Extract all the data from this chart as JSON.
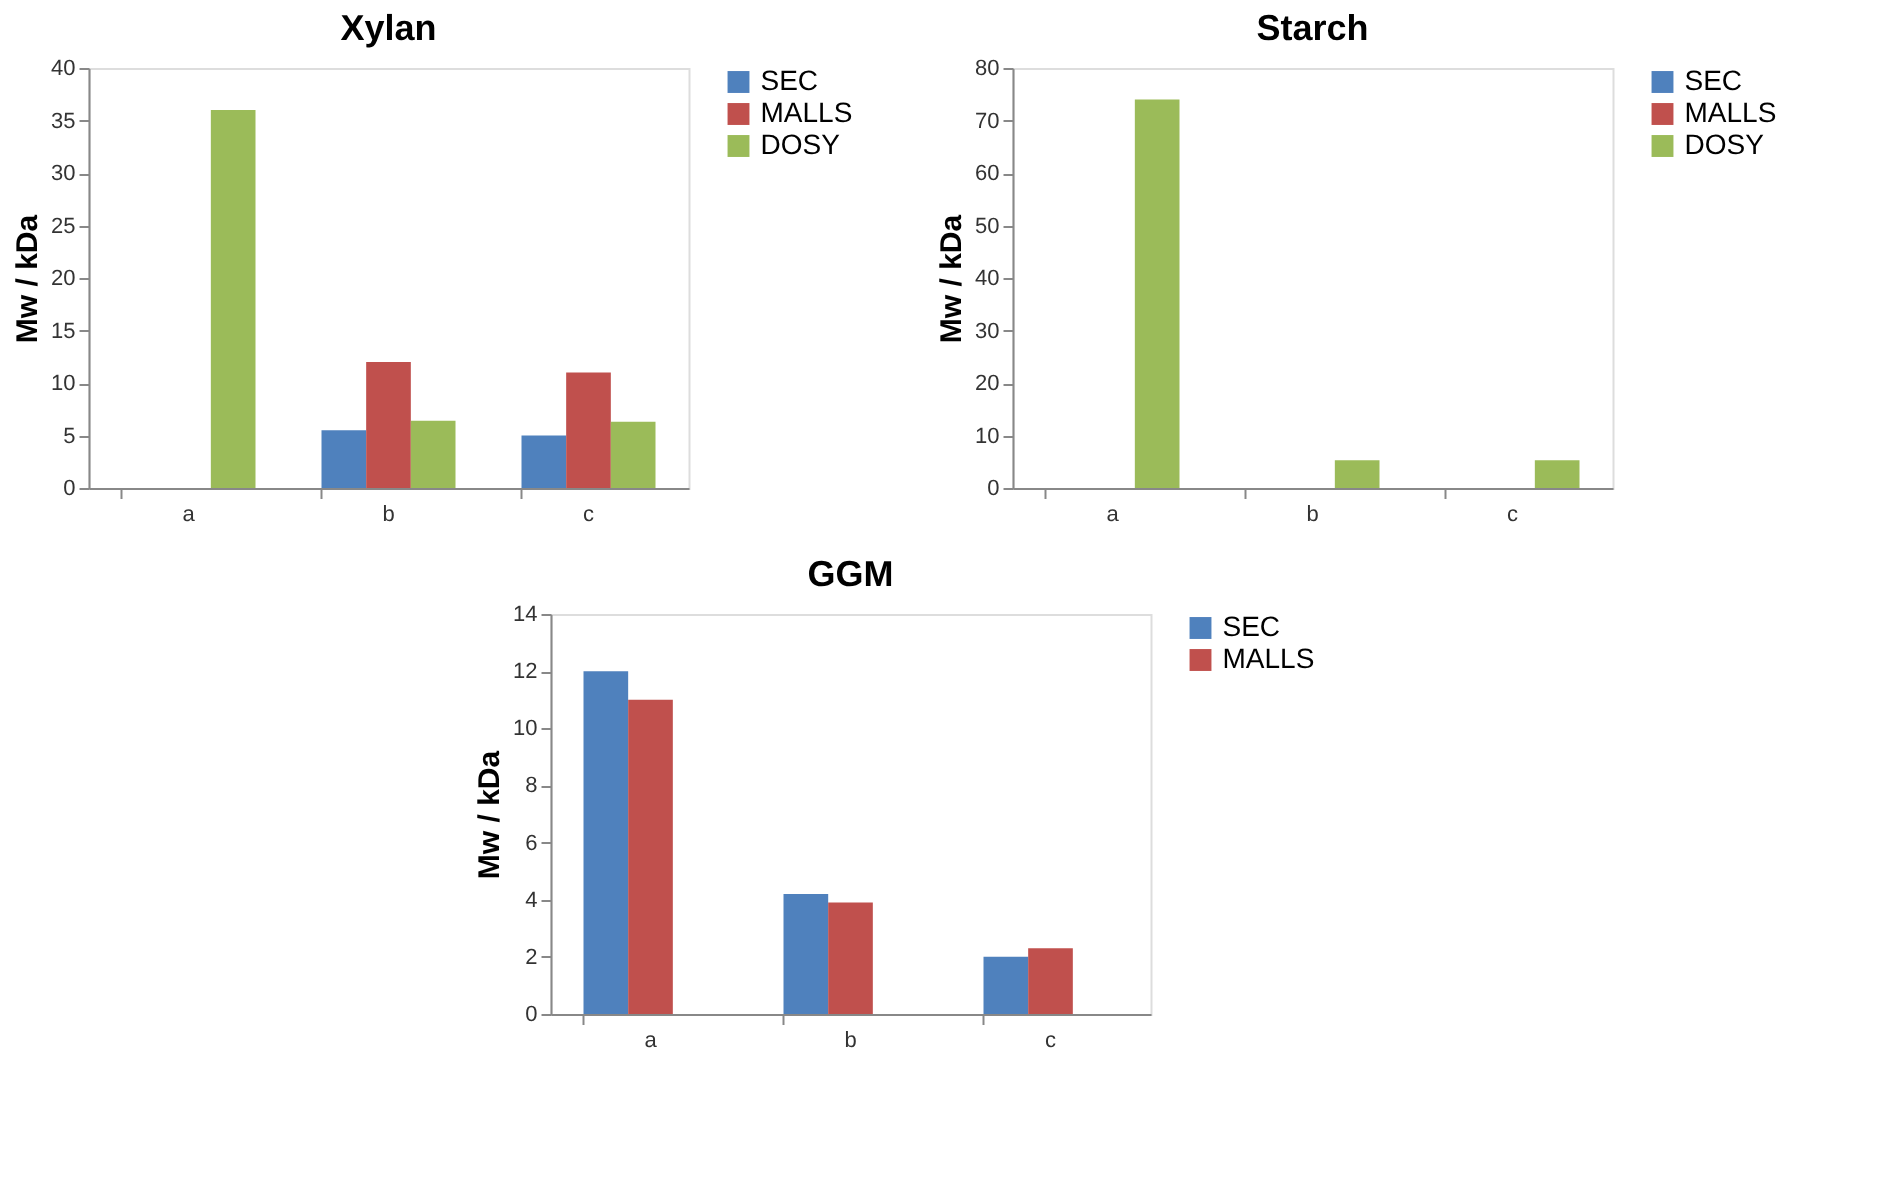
{
  "chart_data": [
    {
      "type": "bar",
      "title": "Xylan",
      "ylabel": "Mw / kDa",
      "categories": [
        "a",
        "b",
        "c"
      ],
      "ylim": [
        0,
        40
      ],
      "yticks": [
        0,
        5,
        10,
        15,
        20,
        25,
        30,
        35,
        40
      ],
      "grid": false,
      "legend": "right",
      "series": [
        {
          "name": "SEC",
          "color": "#4f81bd",
          "values": [
            null,
            5.5,
            5
          ]
        },
        {
          "name": "MALLS",
          "color": "#c0504d",
          "values": [
            null,
            12,
            11
          ]
        },
        {
          "name": "DOSY",
          "color": "#9bbb59",
          "values": [
            36,
            6.4,
            6.3
          ]
        }
      ]
    },
    {
      "type": "bar",
      "title": "Starch",
      "ylabel": "Mw / kDa",
      "categories": [
        "a",
        "b",
        "c"
      ],
      "ylim": [
        0,
        80
      ],
      "yticks": [
        0,
        10,
        20,
        30,
        40,
        50,
        60,
        70,
        80
      ],
      "grid": false,
      "legend": "right",
      "series": [
        {
          "name": "SEC",
          "color": "#4f81bd",
          "values": [
            null,
            null,
            null
          ]
        },
        {
          "name": "MALLS",
          "color": "#c0504d",
          "values": [
            null,
            null,
            null
          ]
        },
        {
          "name": "DOSY",
          "color": "#9bbb59",
          "values": [
            74,
            5.3,
            5.3
          ]
        }
      ]
    },
    {
      "type": "bar",
      "title": "GGM",
      "ylabel": "Mw / kDa",
      "categories": [
        "a",
        "b",
        "c"
      ],
      "ylim": [
        0,
        14
      ],
      "yticks": [
        0,
        2,
        4,
        6,
        8,
        10,
        12,
        14
      ],
      "grid": false,
      "legend": "right",
      "series": [
        {
          "name": "SEC",
          "color": "#4f81bd",
          "values": [
            12,
            4.2,
            2
          ]
        },
        {
          "name": "MALLS",
          "color": "#c0504d",
          "values": [
            11,
            3.9,
            2.3
          ]
        }
      ]
    }
  ]
}
